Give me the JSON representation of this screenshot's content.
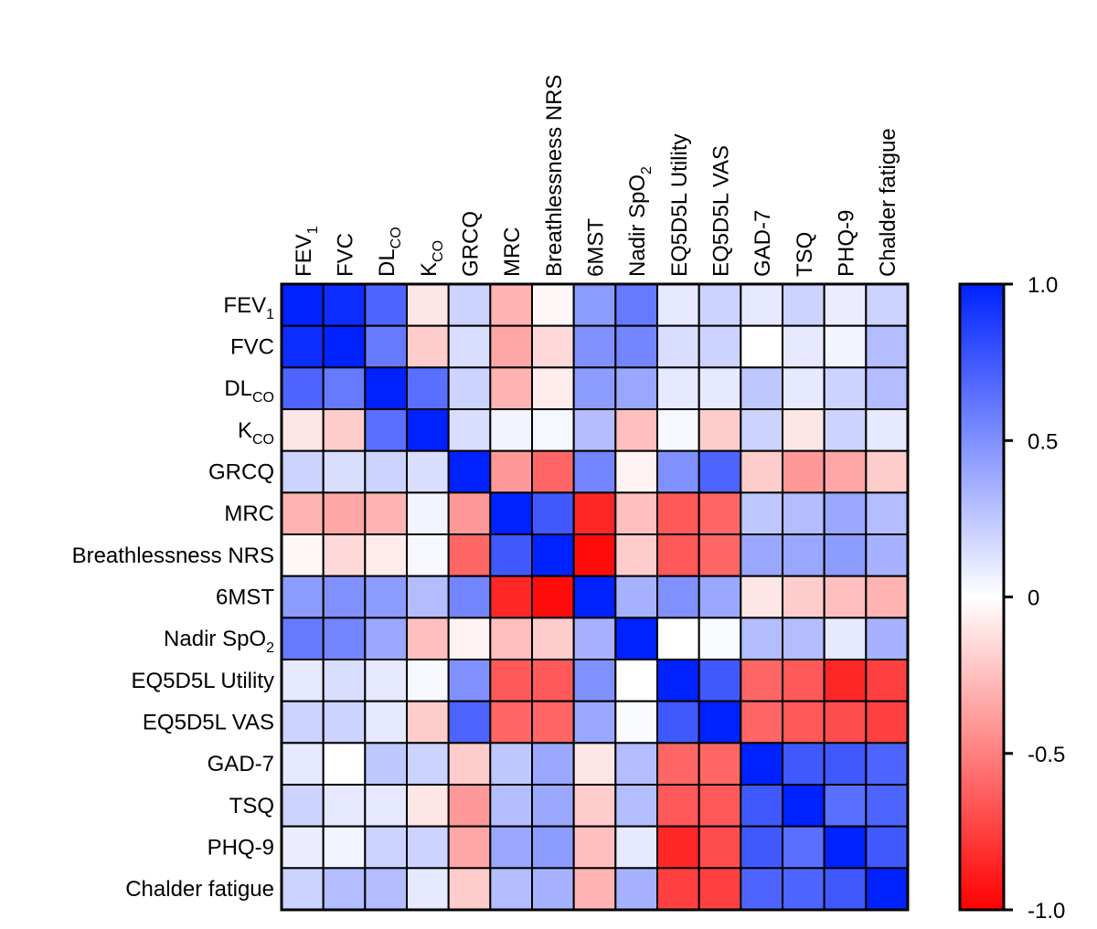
{
  "chart_data": {
    "type": "heatmap",
    "variables": [
      {
        "base": "FEV",
        "sub": "1"
      },
      {
        "base": "FVC",
        "sub": ""
      },
      {
        "base": "DL",
        "sub": "CO"
      },
      {
        "base": "K",
        "sub": "CO"
      },
      {
        "base": "GRCQ",
        "sub": ""
      },
      {
        "base": "MRC",
        "sub": ""
      },
      {
        "base": "Breathlessness NRS",
        "sub": ""
      },
      {
        "base": "6MST",
        "sub": ""
      },
      {
        "base": "Nadir SpO",
        "sub": "2"
      },
      {
        "base": "EQ5D5L Utility",
        "sub": ""
      },
      {
        "base": "EQ5D5L VAS",
        "sub": ""
      },
      {
        "base": "GAD-7",
        "sub": ""
      },
      {
        "base": "TSQ",
        "sub": ""
      },
      {
        "base": "PHQ-9",
        "sub": ""
      },
      {
        "base": "Chalder fatigue",
        "sub": ""
      }
    ],
    "values": [
      [
        1.0,
        0.95,
        0.7,
        -0.1,
        0.2,
        -0.3,
        -0.03,
        0.45,
        0.6,
        0.1,
        0.2,
        0.1,
        0.2,
        0.08,
        0.2
      ],
      [
        0.95,
        1.0,
        0.6,
        -0.2,
        0.15,
        -0.35,
        -0.15,
        0.5,
        0.55,
        0.15,
        0.2,
        0.0,
        0.1,
        0.05,
        0.3
      ],
      [
        0.7,
        0.6,
        1.0,
        0.65,
        0.2,
        -0.3,
        -0.08,
        0.45,
        0.4,
        0.1,
        0.1,
        0.25,
        0.1,
        0.2,
        0.3
      ],
      [
        -0.1,
        -0.2,
        0.65,
        1.0,
        0.15,
        0.05,
        0.03,
        0.3,
        -0.25,
        0.03,
        -0.2,
        0.2,
        -0.1,
        0.2,
        0.1
      ],
      [
        0.2,
        0.15,
        0.2,
        0.15,
        1.0,
        -0.4,
        -0.6,
        0.55,
        -0.05,
        0.5,
        0.7,
        -0.2,
        -0.4,
        -0.35,
        -0.2
      ],
      [
        -0.3,
        -0.35,
        -0.3,
        0.05,
        -0.4,
        1.0,
        0.75,
        -0.85,
        -0.25,
        -0.65,
        -0.6,
        0.25,
        0.3,
        0.4,
        0.3
      ],
      [
        -0.03,
        -0.15,
        -0.08,
        0.03,
        -0.6,
        0.75,
        1.0,
        -0.95,
        -0.2,
        -0.65,
        -0.6,
        0.4,
        0.4,
        0.45,
        0.35
      ],
      [
        0.45,
        0.5,
        0.45,
        0.3,
        0.55,
        -0.85,
        -0.95,
        1.0,
        0.35,
        0.5,
        0.4,
        -0.1,
        -0.2,
        -0.25,
        -0.3
      ],
      [
        0.6,
        0.55,
        0.4,
        -0.25,
        -0.05,
        -0.25,
        -0.2,
        0.35,
        1.0,
        0.0,
        0.02,
        0.3,
        0.3,
        0.1,
        0.35
      ],
      [
        0.1,
        0.15,
        0.1,
        0.03,
        0.5,
        -0.65,
        -0.65,
        0.5,
        0.0,
        1.0,
        0.75,
        -0.6,
        -0.65,
        -0.85,
        -0.75
      ],
      [
        0.2,
        0.2,
        0.1,
        -0.2,
        0.7,
        -0.6,
        -0.6,
        0.4,
        0.02,
        0.75,
        1.0,
        -0.6,
        -0.65,
        -0.7,
        -0.75
      ],
      [
        0.1,
        0.0,
        0.25,
        0.2,
        -0.2,
        0.25,
        0.4,
        -0.1,
        0.3,
        -0.6,
        -0.6,
        1.0,
        0.75,
        0.75,
        0.7
      ],
      [
        0.2,
        0.1,
        0.1,
        -0.1,
        -0.4,
        0.3,
        0.4,
        -0.2,
        0.3,
        -0.65,
        -0.65,
        0.75,
        1.0,
        0.65,
        0.7
      ],
      [
        0.08,
        0.05,
        0.2,
        0.2,
        -0.35,
        0.4,
        0.45,
        -0.25,
        0.1,
        -0.85,
        -0.7,
        0.75,
        0.65,
        1.0,
        0.75
      ],
      [
        0.2,
        0.3,
        0.3,
        0.1,
        -0.2,
        0.3,
        0.35,
        -0.3,
        0.35,
        -0.75,
        -0.75,
        0.7,
        0.7,
        0.75,
        1.0
      ]
    ],
    "colorbar": {
      "min": -1.0,
      "max": 1.0,
      "ticks": [
        1.0,
        0.5,
        0,
        -0.5,
        -1.0
      ],
      "tick_labels": [
        "1.0",
        "0.5",
        "0",
        "-0.5",
        "-1.0"
      ],
      "colors": {
        "positive": "#0022ff",
        "zero": "#ffffff",
        "negative": "#ff0000"
      }
    },
    "grid": true,
    "legend_placement": "right"
  }
}
